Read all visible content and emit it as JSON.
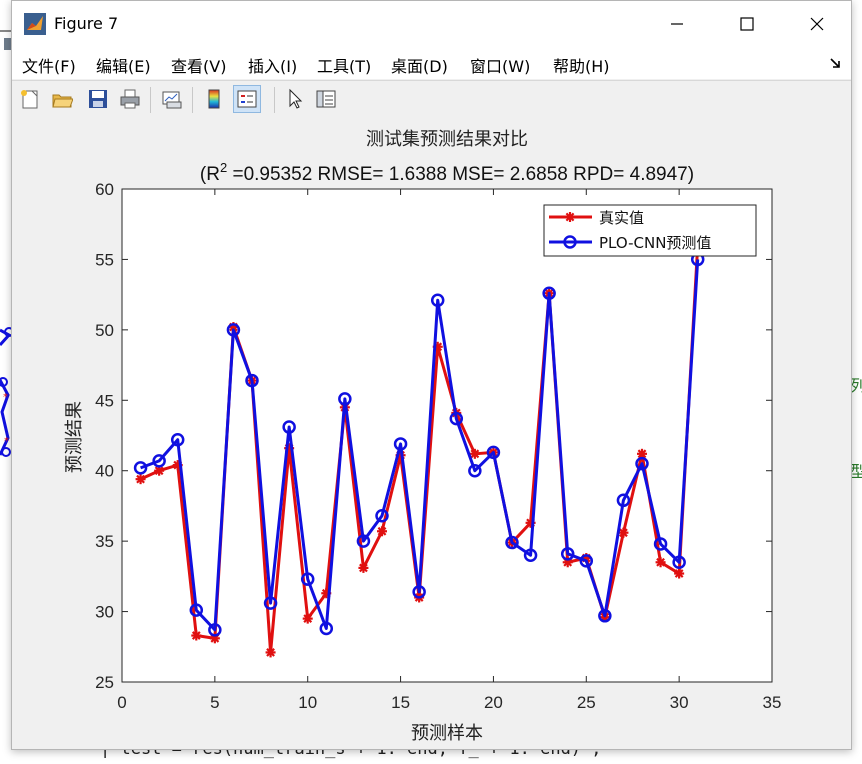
{
  "background": {
    "code_line": "| test = res(num_train_s + 1: end, f_ + 1: end) ;",
    "right_marks": [
      "列",
      "型"
    ]
  },
  "window": {
    "title": "Figure 7",
    "controls": {
      "minimize": "—",
      "maximize": "☐",
      "close": "✕"
    }
  },
  "menu": {
    "items": [
      "文件(F)",
      "编辑(E)",
      "查看(V)",
      "插入(I)",
      "工具(T)",
      "桌面(D)",
      "窗口(W)",
      "帮助(H)"
    ]
  },
  "toolbar": {
    "buttons": [
      "new-figure-icon",
      "open-icon",
      "save-icon",
      "print-icon",
      "link-plot-icon",
      "colorbar-icon",
      "legend-icon",
      "pointer-icon",
      "property-inspector-icon"
    ]
  },
  "colors": {
    "true_series": "#e01010",
    "pred_series": "#1010e0",
    "axes_bg": "#ffffff",
    "figure_bg": "#f0f0f0"
  },
  "chart_data": {
    "type": "line",
    "title": "测试集预测结果对比",
    "subtitle_prefix": "(R",
    "subtitle_sup": "2",
    "subtitle_rest": " =0.95352 RMSE= 1.6388 MSE= 2.6858 RPD= 4.8947)",
    "xlabel": "预测样本",
    "ylabel": "预测结果",
    "xlim": [
      0,
      35
    ],
    "ylim": [
      25,
      60
    ],
    "xticks": [
      0,
      5,
      10,
      15,
      20,
      25,
      30,
      35
    ],
    "yticks": [
      25,
      30,
      35,
      40,
      45,
      50,
      55,
      60
    ],
    "grid": false,
    "legend_position": "top-right",
    "x": [
      1,
      2,
      3,
      4,
      5,
      6,
      7,
      8,
      9,
      10,
      11,
      12,
      13,
      14,
      15,
      16,
      17,
      18,
      19,
      20,
      21,
      22,
      23,
      24,
      25,
      26,
      27,
      28,
      29,
      30,
      31
    ],
    "series": [
      {
        "name": "真实值",
        "marker": "asterisk",
        "values": [
          39.4,
          40.0,
          40.4,
          28.3,
          28.1,
          50.2,
          46.4,
          27.1,
          41.6,
          29.5,
          31.3,
          44.5,
          33.1,
          35.7,
          41.1,
          31.0,
          48.8,
          44.1,
          41.2,
          41.3,
          34.9,
          36.3,
          52.6,
          33.5,
          33.8,
          29.6,
          35.6,
          41.2,
          33.5,
          32.7,
          56.0
        ]
      },
      {
        "name": "PLO-CNN预测值",
        "marker": "circle",
        "values": [
          40.2,
          40.7,
          42.2,
          30.1,
          28.7,
          50.0,
          46.4,
          30.6,
          43.1,
          32.3,
          28.8,
          45.1,
          35.0,
          36.8,
          41.9,
          31.4,
          52.1,
          43.7,
          40.0,
          41.3,
          34.9,
          34.0,
          52.6,
          34.1,
          33.6,
          29.7,
          37.9,
          40.5,
          34.8,
          33.5,
          55.0
        ]
      }
    ]
  }
}
